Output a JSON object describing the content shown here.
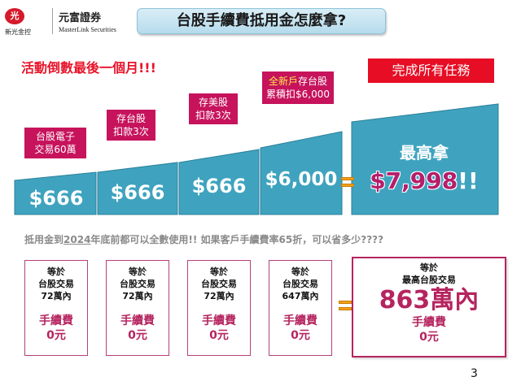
{
  "header": {
    "logo_mark": "光",
    "logo_sub": "新光金控",
    "logo_cn": "元富證券",
    "logo_en": "MasterLink Securities",
    "title": "台股手續費抵用金怎麼拿?"
  },
  "campaign_text": "活動倒數最後一個月!!!",
  "complete_all_tasks": "完成所有任務",
  "tags": {
    "t1": "台股電子\n交易60萬",
    "t2": "存台股\n扣款3次",
    "t3": "存美股\n扣款3次",
    "t4_highlight": "全新戶",
    "t4_rest": "存台股\n累積扣$6,000"
  },
  "ramp_values": [
    "$666",
    "$666",
    "$666",
    "$6,000"
  ],
  "max_label": "最高拿",
  "max_amount": "$7,998",
  "max_exclaim": "!!",
  "note": {
    "part1": "抵用金到",
    "year": "2024",
    "part2": "年底前都可以全數使用!!   如果客戶手續費率65折，可以省多少????"
  },
  "boxes": [
    {
      "title": "等於",
      "trade1": "台股交易",
      "trade2": "72萬內",
      "fee": "手續費",
      "zero": "0元"
    },
    {
      "title": "等於",
      "trade1": "台股交易",
      "trade2": "72萬內",
      "fee": "手續費",
      "zero": "0元"
    },
    {
      "title": "等於",
      "trade1": "台股交易",
      "trade2": "72萬內",
      "fee": "手續費",
      "zero": "0元"
    },
    {
      "title": "等於",
      "trade1": "台股交易",
      "trade2": "647萬內",
      "fee": "手續費",
      "zero": "0元"
    }
  ],
  "big_box": {
    "t1": "等於",
    "t2": "最高台股交易",
    "amount": "863萬內",
    "fee": "手續費",
    "zero": "0元"
  },
  "page_number": "3",
  "colors": {
    "ramp": "#3fa3bf",
    "ramp_dark": "#2b7f99",
    "tag": "#c6135c",
    "accent_red": "#e60d24",
    "border": "#b5245f"
  }
}
